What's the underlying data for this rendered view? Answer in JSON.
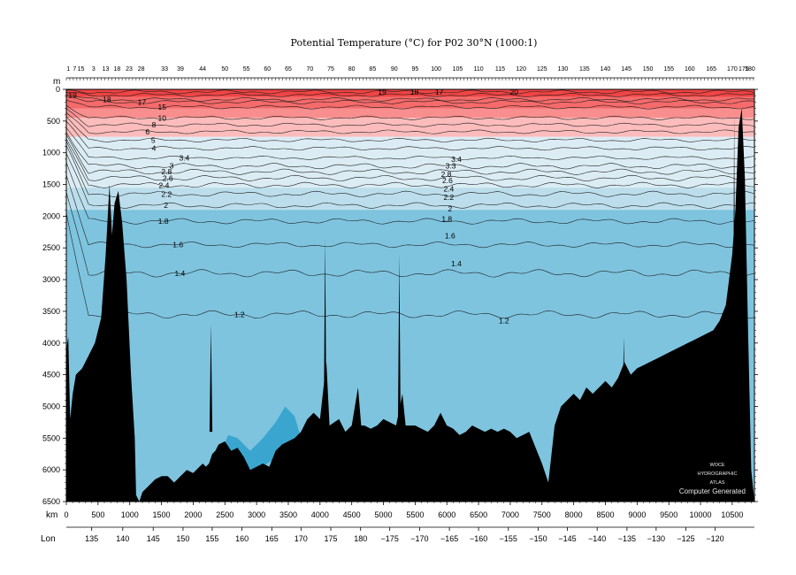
{
  "chart_data": {
    "type": "heatmap",
    "title": "Potential Temperature (°C) for P02 30°N (1000:1)",
    "ylabel": "m",
    "xlabel": "km",
    "x2label": "Lon",
    "xlim": [
      0,
      10850
    ],
    "ylim": [
      6500,
      0
    ],
    "x_ticks": [
      0,
      500,
      1000,
      1500,
      2000,
      2500,
      3000,
      3500,
      4000,
      4500,
      5000,
      5500,
      6000,
      6500,
      7000,
      7500,
      8000,
      8500,
      9000,
      9500,
      10000,
      10500
    ],
    "y_ticks": [
      0,
      500,
      1000,
      1500,
      2000,
      2500,
      3000,
      3500,
      4000,
      4500,
      5000,
      5500,
      6000,
      6500
    ],
    "lon_ticks": [
      {
        "label": "135",
        "km": 400
      },
      {
        "label": "140",
        "km": 890
      },
      {
        "label": "145",
        "km": 1370
      },
      {
        "label": "150",
        "km": 1840
      },
      {
        "label": "155",
        "km": 2300
      },
      {
        "label": "160",
        "km": 2770
      },
      {
        "label": "165",
        "km": 3240
      },
      {
        "label": "170",
        "km": 3700
      },
      {
        "label": "175",
        "km": 4170
      },
      {
        "label": "180",
        "km": 4640
      },
      {
        "label": "−175",
        "km": 5100
      },
      {
        "label": "−170",
        "km": 5570
      },
      {
        "label": "−165",
        "km": 6040
      },
      {
        "label": "−160",
        "km": 6500
      },
      {
        "label": "−155",
        "km": 6970
      },
      {
        "label": "−150",
        "km": 7440
      },
      {
        "label": "−145",
        "km": 7900
      },
      {
        "label": "−140",
        "km": 8370
      },
      {
        "label": "−135",
        "km": 8840
      },
      {
        "label": "−130",
        "km": 9300
      },
      {
        "label": "−125",
        "km": 9770
      },
      {
        "label": "−120",
        "km": 10230
      }
    ],
    "station_numbers": [
      {
        "label": "1",
        "km": 30
      },
      {
        "label": "7",
        "km": 130
      },
      {
        "label": "15",
        "km": 230
      },
      {
        "label": "3",
        "km": 430
      },
      {
        "label": "13",
        "km": 620
      },
      {
        "label": "18",
        "km": 800
      },
      {
        "label": "23",
        "km": 990
      },
      {
        "label": "28",
        "km": 1180
      },
      {
        "label": "33",
        "km": 1550
      },
      {
        "label": "39",
        "km": 1800
      },
      {
        "label": "44",
        "km": 2150
      },
      {
        "label": "50",
        "km": 2500
      },
      {
        "label": "55",
        "km": 2840
      },
      {
        "label": "60",
        "km": 3170
      },
      {
        "label": "65",
        "km": 3500
      },
      {
        "label": "70",
        "km": 3840
      },
      {
        "label": "75",
        "km": 4170
      },
      {
        "label": "80",
        "km": 4500
      },
      {
        "label": "85",
        "km": 4830
      },
      {
        "label": "90",
        "km": 5170
      },
      {
        "label": "95",
        "km": 5500
      },
      {
        "label": "100",
        "km": 5830
      },
      {
        "label": "105",
        "km": 6170
      },
      {
        "label": "110",
        "km": 6500
      },
      {
        "label": "115",
        "km": 6840
      },
      {
        "label": "120",
        "km": 7170
      },
      {
        "label": "125",
        "km": 7500
      },
      {
        "label": "130",
        "km": 7830
      },
      {
        "label": "135",
        "km": 8170
      },
      {
        "label": "140",
        "km": 8500
      },
      {
        "label": "145",
        "km": 8830
      },
      {
        "label": "150",
        "km": 9170
      },
      {
        "label": "155",
        "km": 9500
      },
      {
        "label": "160",
        "km": 9830
      },
      {
        "label": "165",
        "km": 10170
      },
      {
        "label": "170",
        "km": 10500
      },
      {
        "label": "175",
        "km": 10680
      },
      {
        "label": "180",
        "km": 10780
      }
    ],
    "color_bands": [
      {
        "depth_top": 0,
        "depth_bottom": 120,
        "color": "#f04444"
      },
      {
        "depth_top": 120,
        "depth_bottom": 300,
        "color": "#f56a6a"
      },
      {
        "depth_top": 300,
        "depth_bottom": 450,
        "color": "#f98e8e"
      },
      {
        "depth_top": 450,
        "depth_bottom": 750,
        "color": "#fcbcbc"
      },
      {
        "depth_top": 750,
        "depth_bottom": 1550,
        "color": "#dbecf4"
      },
      {
        "depth_top": 1550,
        "depth_bottom": 1900,
        "color": "#bcdeec"
      },
      {
        "depth_top": 1900,
        "depth_bottom": 6500,
        "color": "#7ec4df"
      }
    ],
    "deep_pool_color": "#3aa6cf",
    "bathymetry": [
      [
        0,
        4100
      ],
      [
        30,
        3900
      ],
      [
        60,
        5200
      ],
      [
        100,
        4800
      ],
      [
        150,
        4500
      ],
      [
        250,
        4400
      ],
      [
        350,
        4200
      ],
      [
        450,
        4000
      ],
      [
        550,
        3600
      ],
      [
        620,
        2600
      ],
      [
        680,
        1500
      ],
      [
        720,
        2300
      ],
      [
        760,
        1800
      ],
      [
        820,
        1600
      ],
      [
        880,
        2100
      ],
      [
        950,
        3000
      ],
      [
        1020,
        4500
      ],
      [
        1080,
        5500
      ],
      [
        1100,
        6400
      ],
      [
        1150,
        6500
      ],
      [
        1200,
        6350
      ],
      [
        1300,
        6250
      ],
      [
        1400,
        6150
      ],
      [
        1500,
        6100
      ],
      [
        1600,
        6100
      ],
      [
        1700,
        6200
      ],
      [
        1800,
        6100
      ],
      [
        1900,
        6000
      ],
      [
        2000,
        6050
      ],
      [
        2150,
        5900
      ],
      [
        2200,
        5950
      ],
      [
        2250,
        5900
      ],
      [
        2300,
        5750
      ],
      [
        2350,
        5700
      ],
      [
        2400,
        5600
      ],
      [
        2500,
        5550
      ],
      [
        2600,
        5700
      ],
      [
        2700,
        5650
      ],
      [
        2800,
        5800
      ],
      [
        2900,
        6000
      ],
      [
        3000,
        5950
      ],
      [
        3100,
        5900
      ],
      [
        3200,
        5950
      ],
      [
        3300,
        5700
      ],
      [
        3400,
        5600
      ],
      [
        3500,
        5550
      ],
      [
        3600,
        5500
      ],
      [
        3700,
        5400
      ],
      [
        3800,
        5200
      ],
      [
        3900,
        5100
      ],
      [
        4000,
        5200
      ],
      [
        4100,
        4300
      ],
      [
        4150,
        5300
      ],
      [
        4300,
        5200
      ],
      [
        4400,
        5400
      ],
      [
        4500,
        5300
      ],
      [
        4600,
        4700
      ],
      [
        4650,
        5300
      ],
      [
        4700,
        5300
      ],
      [
        4800,
        5350
      ],
      [
        4900,
        5300
      ],
      [
        5000,
        5200
      ],
      [
        5100,
        5250
      ],
      [
        5200,
        5300
      ],
      [
        5300,
        4800
      ],
      [
        5350,
        5300
      ],
      [
        5500,
        5300
      ],
      [
        5600,
        5350
      ],
      [
        5700,
        5400
      ],
      [
        5800,
        5300
      ],
      [
        5900,
        5100
      ],
      [
        6000,
        5300
      ],
      [
        6100,
        5350
      ],
      [
        6200,
        5450
      ],
      [
        6300,
        5400
      ],
      [
        6400,
        5300
      ],
      [
        6500,
        5350
      ],
      [
        6600,
        5400
      ],
      [
        6700,
        5350
      ],
      [
        6800,
        5400
      ],
      [
        6900,
        5350
      ],
      [
        7000,
        5400
      ],
      [
        7100,
        5500
      ],
      [
        7200,
        5450
      ],
      [
        7300,
        5400
      ],
      [
        7400,
        5650
      ],
      [
        7500,
        5900
      ],
      [
        7600,
        6200
      ],
      [
        7700,
        5300
      ],
      [
        7800,
        5000
      ],
      [
        7900,
        4900
      ],
      [
        8000,
        4800
      ],
      [
        8100,
        4900
      ],
      [
        8200,
        4700
      ],
      [
        8300,
        4800
      ],
      [
        8400,
        4700
      ],
      [
        8500,
        4600
      ],
      [
        8600,
        4700
      ],
      [
        8700,
        4550
      ],
      [
        8800,
        4300
      ],
      [
        8900,
        4500
      ],
      [
        9000,
        4400
      ],
      [
        9100,
        4350
      ],
      [
        9200,
        4300
      ],
      [
        9300,
        4250
      ],
      [
        9400,
        4200
      ],
      [
        9500,
        4150
      ],
      [
        9600,
        4100
      ],
      [
        9700,
        4050
      ],
      [
        9800,
        4000
      ],
      [
        9900,
        3950
      ],
      [
        10000,
        3900
      ],
      [
        10100,
        3850
      ],
      [
        10200,
        3800
      ],
      [
        10300,
        3650
      ],
      [
        10400,
        3400
      ],
      [
        10500,
        2600
      ],
      [
        10550,
        1900
      ],
      [
        10600,
        600
      ],
      [
        10650,
        300
      ],
      [
        10700,
        1400
      ],
      [
        10750,
        3800
      ],
      [
        10800,
        6000
      ],
      [
        10850,
        6500
      ]
    ],
    "spikes": [
      {
        "km": 2280,
        "depth": 3700
      },
      {
        "km": 4080,
        "depth": 2350
      },
      {
        "km": 5250,
        "depth": 2600
      },
      {
        "km": 8790,
        "depth": 3900
      },
      {
        "km": 10530,
        "depth": 400
      }
    ],
    "isotherms": [
      {
        "value": "1.2",
        "depth": 3550,
        "label_km": 2730
      },
      {
        "value": "1.4",
        "depth": 2900,
        "label_km": 1790
      },
      {
        "value": "1.6",
        "depth": 2450,
        "label_km": 1760
      },
      {
        "value": "1.8",
        "depth": 2080,
        "label_km": 1530
      },
      {
        "value": "2",
        "depth": 1830,
        "label_km": 1570
      },
      {
        "value": "2.2",
        "depth": 1650,
        "label_km": 1580
      },
      {
        "value": "2.4",
        "depth": 1510,
        "label_km": 1540
      },
      {
        "value": "2.6",
        "depth": 1400,
        "label_km": 1600
      },
      {
        "value": "2.8",
        "depth": 1300,
        "label_km": 1580
      },
      {
        "value": "3",
        "depth": 1210,
        "label_km": 1660
      },
      {
        "value": "3.4",
        "depth": 1080,
        "label_km": 1860
      },
      {
        "value": "4",
        "depth": 930,
        "label_km": 1380
      },
      {
        "value": "5",
        "depth": 800,
        "label_km": 1370
      },
      {
        "value": "6",
        "depth": 670,
        "label_km": 1280
      },
      {
        "value": "8",
        "depth": 560,
        "label_km": 1380
      },
      {
        "value": "10",
        "depth": 450,
        "label_km": 1510
      },
      {
        "value": "15",
        "depth": 280,
        "label_km": 1510
      },
      {
        "value": "17",
        "depth": 200,
        "label_km": 1190
      },
      {
        "value": "18",
        "depth": 160,
        "label_km": 640
      },
      {
        "value": "19",
        "depth": 90,
        "label_km": 100
      },
      {
        "value": "20",
        "depth": 40,
        "label_km": 7060
      }
    ],
    "inline_labels": [
      {
        "value": "1.2",
        "km": 6900,
        "depth": 3650
      },
      {
        "value": "1.4",
        "km": 6150,
        "depth": 2750
      },
      {
        "value": "1.6",
        "km": 6050,
        "depth": 2310
      },
      {
        "value": "1.8",
        "km": 6000,
        "depth": 2040
      },
      {
        "value": "2",
        "km": 6050,
        "depth": 1880
      },
      {
        "value": "2.2",
        "km": 6030,
        "depth": 1700
      },
      {
        "value": "2.4",
        "km": 6030,
        "depth": 1570
      },
      {
        "value": "2.6",
        "km": 6010,
        "depth": 1440
      },
      {
        "value": "2.8",
        "km": 5990,
        "depth": 1340
      },
      {
        "value": "3.3",
        "km": 6060,
        "depth": 1210
      },
      {
        "value": "3.4",
        "km": 6150,
        "depth": 1100
      },
      {
        "value": "19",
        "km": 4980,
        "depth": 40
      },
      {
        "value": "18",
        "km": 5490,
        "depth": 40
      },
      {
        "value": "17",
        "km": 5880,
        "depth": 40
      }
    ],
    "watermark": {
      "line1": "WOCE",
      "line2": "HYDROGRAPHIC",
      "line3": "ATLAS",
      "line4": "Computer Generated"
    }
  }
}
